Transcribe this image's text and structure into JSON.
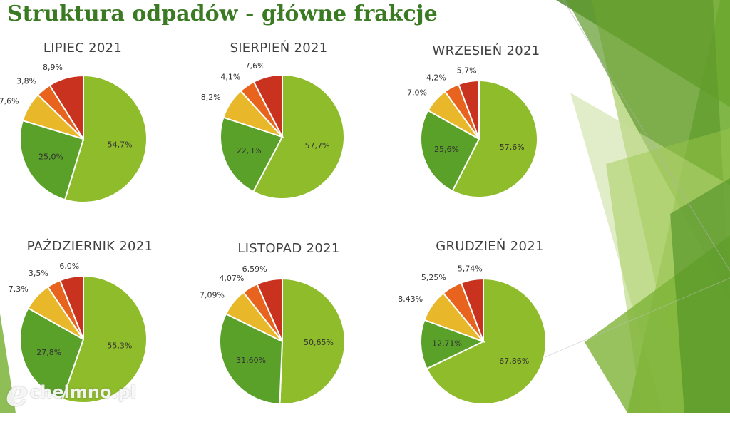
{
  "slide": {
    "title": "Struktura odpadów - główne frakcje"
  },
  "watermark": {
    "letter": "e",
    "text": "chelmno.pl"
  },
  "colors": {
    "green_light": "#8fbc2a",
    "green_dark": "#5aa129",
    "yellow": "#e8b72a",
    "orange": "#e8641e",
    "red": "#c8321e",
    "title_green": "#3a7a22"
  },
  "chart_data": [
    {
      "type": "pie",
      "title": "LIPIEC 2021",
      "labels": [
        "54,7%",
        "25,0%",
        "7,6%",
        "3,8%",
        "8,9%"
      ],
      "values": [
        54.7,
        25.0,
        7.6,
        3.8,
        8.9
      ]
    },
    {
      "type": "pie",
      "title": "SIERPIEŃ 2021",
      "labels": [
        "57,7%",
        "22,3%",
        "8,2%",
        "4,1%",
        "7,6%"
      ],
      "values": [
        57.7,
        22.3,
        8.2,
        4.1,
        7.6
      ]
    },
    {
      "type": "pie",
      "title": "WRZESIEŃ 2021",
      "labels": [
        "57,6%",
        "25,6%",
        "7,0%",
        "4,2%",
        "5,7%"
      ],
      "values": [
        57.6,
        25.6,
        7.0,
        4.2,
        5.7
      ]
    },
    {
      "type": "pie",
      "title": "PAŹDZIERNIK 2021",
      "labels": [
        "55,3%",
        "27,8%",
        "7,3%",
        "3,5%",
        "6,0%"
      ],
      "values": [
        55.3,
        27.8,
        7.3,
        3.5,
        6.0
      ]
    },
    {
      "type": "pie",
      "title": "LISTOPAD 2021",
      "labels": [
        "50,65%",
        "31,60%",
        "7,09%",
        "4,07%",
        "6,59%"
      ],
      "values": [
        50.65,
        31.6,
        7.09,
        4.07,
        6.59
      ]
    },
    {
      "type": "pie",
      "title": "GRUDZIEŃ 2021",
      "labels": [
        "67,86%",
        "12,71%",
        "8,43%",
        "5,25%",
        "5,74%"
      ],
      "values": [
        67.86,
        12.71,
        8.43,
        5.25,
        5.74
      ]
    }
  ]
}
